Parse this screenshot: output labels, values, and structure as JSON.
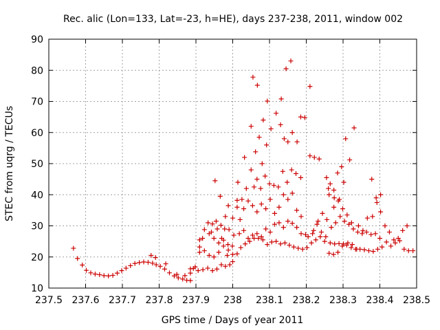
{
  "chart_data": {
    "type": "scatter",
    "title": "Rec. alic (Lon=133, Lat=-23, h=HE), days 237-238, 2011, window 002",
    "xlabel": "GPS time / Days of year 2011",
    "ylabel": "STEC from uqrg / TECUs",
    "xlim": [
      237.5,
      238.5
    ],
    "ylim": [
      10,
      90
    ],
    "x_ticks": [
      "237.5",
      "237.6",
      "237.7",
      "237.8",
      "237.9",
      "238",
      "238.1",
      "238.2",
      "238.3",
      "238.4",
      "238.5"
    ],
    "x_tick_values": [
      237.5,
      237.6,
      237.7,
      237.8,
      237.9,
      238.0,
      238.1,
      238.2,
      238.3,
      238.4,
      238.5
    ],
    "y_ticks": [
      "10",
      "20",
      "30",
      "40",
      "50",
      "60",
      "70",
      "80",
      "90"
    ],
    "y_tick_values": [
      10,
      20,
      30,
      40,
      50,
      60,
      70,
      80,
      90
    ],
    "grid": true,
    "marker": "plus",
    "color": "#cc0000",
    "points": [
      [
        237.567,
        22.8
      ],
      [
        237.578,
        19.5
      ],
      [
        237.591,
        17.4
      ],
      [
        237.602,
        15.7
      ],
      [
        237.614,
        14.9
      ],
      [
        237.626,
        14.5
      ],
      [
        237.638,
        14.3
      ],
      [
        237.65,
        14.0
      ],
      [
        237.662,
        13.9
      ],
      [
        237.674,
        14.1
      ],
      [
        237.686,
        14.8
      ],
      [
        237.698,
        15.6
      ],
      [
        237.71,
        16.4
      ],
      [
        237.722,
        17.2
      ],
      [
        237.734,
        17.9
      ],
      [
        237.746,
        18.2
      ],
      [
        237.758,
        18.4
      ],
      [
        237.77,
        18.3
      ],
      [
        237.782,
        18.0
      ],
      [
        237.792,
        17.5
      ],
      [
        237.803,
        17.0
      ],
      [
        237.815,
        16.1
      ],
      [
        237.828,
        14.9
      ],
      [
        237.841,
        13.9
      ],
      [
        237.852,
        13.3
      ],
      [
        237.864,
        12.9
      ],
      [
        237.875,
        12.5
      ],
      [
        237.885,
        12.4
      ],
      [
        237.778,
        20.5
      ],
      [
        237.79,
        19.8
      ],
      [
        237.818,
        17.8
      ],
      [
        237.848,
        14.4
      ],
      [
        237.87,
        14.0
      ],
      [
        237.885,
        14.8
      ],
      [
        237.893,
        16.3
      ],
      [
        237.906,
        15.6
      ],
      [
        237.919,
        15.9
      ],
      [
        237.932,
        16.4
      ],
      [
        237.945,
        15.6
      ],
      [
        237.957,
        16.1
      ],
      [
        237.969,
        17.5
      ],
      [
        237.98,
        17.0
      ],
      [
        237.992,
        17.5
      ],
      [
        237.885,
        16.2
      ],
      [
        237.898,
        16.8
      ],
      [
        237.91,
        23.2
      ],
      [
        237.923,
        22.0
      ],
      [
        237.936,
        20.5
      ],
      [
        237.949,
        20.0
      ],
      [
        237.962,
        21.5
      ],
      [
        237.975,
        23.5
      ],
      [
        237.988,
        22.2
      ],
      [
        238.0,
        20.8
      ],
      [
        238.012,
        21.0
      ],
      [
        237.91,
        25.5
      ],
      [
        237.923,
        28.8
      ],
      [
        237.936,
        27.5
      ],
      [
        237.949,
        26.0
      ],
      [
        237.962,
        24.5
      ],
      [
        237.975,
        25.4
      ],
      [
        237.987,
        24.0
      ],
      [
        237.999,
        23.5
      ],
      [
        237.91,
        21.5
      ],
      [
        237.918,
        26.0
      ],
      [
        237.933,
        31.0
      ],
      [
        237.945,
        30.6
      ],
      [
        237.958,
        29.0
      ],
      [
        237.968,
        30.2
      ],
      [
        237.978,
        29.0
      ],
      [
        237.99,
        28.8
      ],
      [
        238.003,
        27.0
      ],
      [
        237.942,
        28.0
      ],
      [
        237.952,
        44.5
      ],
      [
        237.966,
        39.5
      ],
      [
        237.98,
        33.0
      ],
      [
        237.988,
        36.5
      ],
      [
        238.0,
        32.5
      ],
      [
        238.012,
        36.0
      ],
      [
        237.955,
        31.5
      ],
      [
        237.97,
        26.0
      ],
      [
        237.985,
        20.5
      ],
      [
        238.0,
        18.5
      ],
      [
        238.012,
        38.2
      ],
      [
        238.025,
        38.5
      ],
      [
        238.037,
        42.0
      ],
      [
        238.05,
        48.0
      ],
      [
        238.062,
        53.8
      ],
      [
        238.072,
        58.5
      ],
      [
        238.083,
        64.0
      ],
      [
        238.094,
        70.1
      ],
      [
        238.014,
        44.0
      ],
      [
        238.032,
        52.0
      ],
      [
        238.05,
        62.0
      ],
      [
        238.055,
        77.8
      ],
      [
        238.067,
        75.2
      ],
      [
        238.08,
        50.0
      ],
      [
        238.092,
        56.0
      ],
      [
        238.104,
        61.2
      ],
      [
        238.118,
        66.2
      ],
      [
        238.132,
        70.8
      ],
      [
        238.145,
        80.5
      ],
      [
        238.158,
        83.0
      ],
      [
        238.13,
        62.5
      ],
      [
        238.14,
        58.0
      ],
      [
        238.15,
        57.0
      ],
      [
        238.162,
        60.0
      ],
      [
        238.175,
        57.0
      ],
      [
        238.185,
        65.0
      ],
      [
        238.196,
        64.8
      ],
      [
        238.21,
        74.8
      ],
      [
        238.21,
        52.5
      ],
      [
        238.222,
        52.0
      ],
      [
        238.235,
        51.5
      ],
      [
        238.058,
        42.5
      ],
      [
        238.066,
        45.0
      ],
      [
        238.076,
        42.0
      ],
      [
        238.088,
        46.0
      ],
      [
        238.1,
        43.5
      ],
      [
        238.112,
        43.0
      ],
      [
        238.124,
        42.5
      ],
      [
        238.136,
        47.5
      ],
      [
        238.148,
        44.0
      ],
      [
        238.16,
        48.0
      ],
      [
        238.172,
        46.8
      ],
      [
        238.185,
        45.5
      ],
      [
        238.02,
        32.0
      ],
      [
        238.03,
        35.5
      ],
      [
        238.042,
        38.0
      ],
      [
        238.054,
        36.5
      ],
      [
        238.066,
        34.5
      ],
      [
        238.078,
        37.0
      ],
      [
        238.09,
        35.5
      ],
      [
        238.102,
        38.5
      ],
      [
        238.114,
        34.0
      ],
      [
        238.126,
        36.0
      ],
      [
        238.138,
        40.0
      ],
      [
        238.15,
        38.5
      ],
      [
        238.162,
        40.5
      ],
      [
        238.174,
        35.0
      ],
      [
        238.186,
        33.0
      ],
      [
        238.018,
        27.5
      ],
      [
        238.03,
        28.5
      ],
      [
        238.042,
        26.0
      ],
      [
        238.054,
        27.0
      ],
      [
        238.066,
        27.5
      ],
      [
        238.078,
        26.5
      ],
      [
        238.09,
        29.0
      ],
      [
        238.102,
        28.0
      ],
      [
        238.114,
        30.5
      ],
      [
        238.126,
        31.0
      ],
      [
        238.138,
        29.5
      ],
      [
        238.15,
        31.5
      ],
      [
        238.162,
        30.8
      ],
      [
        238.174,
        29.5
      ],
      [
        238.186,
        27.5
      ],
      [
        238.198,
        27.2
      ],
      [
        238.022,
        23.0
      ],
      [
        238.034,
        24.2
      ],
      [
        238.046,
        25.0
      ],
      [
        238.058,
        26.0
      ],
      [
        238.07,
        26.0
      ],
      [
        238.082,
        25.5
      ],
      [
        238.094,
        24.0
      ],
      [
        238.106,
        24.8
      ],
      [
        238.118,
        25.0
      ],
      [
        238.13,
        24.2
      ],
      [
        238.142,
        24.5
      ],
      [
        238.154,
        23.8
      ],
      [
        238.166,
        23.2
      ],
      [
        238.178,
        22.8
      ],
      [
        238.19,
        22.5
      ],
      [
        238.202,
        23.0
      ],
      [
        238.214,
        24.5
      ],
      [
        238.226,
        25.5
      ],
      [
        238.238,
        26.5
      ],
      [
        238.25,
        25.0
      ],
      [
        238.262,
        21.2
      ],
      [
        238.274,
        20.8
      ],
      [
        238.286,
        21.5
      ],
      [
        238.298,
        23.5
      ],
      [
        238.31,
        23.8
      ],
      [
        238.322,
        23.0
      ],
      [
        238.334,
        22.5
      ],
      [
        238.346,
        22.5
      ],
      [
        238.358,
        22.3
      ],
      [
        238.37,
        22.0
      ],
      [
        238.382,
        21.8
      ],
      [
        238.394,
        22.5
      ],
      [
        238.406,
        23.2
      ],
      [
        238.418,
        24.8
      ],
      [
        238.43,
        23.5
      ],
      [
        238.442,
        24.5
      ],
      [
        238.454,
        25.2
      ],
      [
        238.466,
        22.5
      ],
      [
        238.478,
        22.0
      ],
      [
        238.49,
        22.0
      ],
      [
        238.205,
        26.5
      ],
      [
        238.217,
        27.5
      ],
      [
        238.229,
        30.5
      ],
      [
        238.241,
        28.0
      ],
      [
        238.253,
        26.5
      ],
      [
        238.265,
        24.5
      ],
      [
        238.277,
        24.2
      ],
      [
        238.289,
        24.3
      ],
      [
        238.301,
        24.2
      ],
      [
        238.313,
        24.5
      ],
      [
        238.325,
        24.0
      ],
      [
        238.337,
        22.5
      ],
      [
        238.22,
        28.5
      ],
      [
        238.232,
        31.5
      ],
      [
        238.244,
        34.0
      ],
      [
        238.256,
        32.0
      ],
      [
        238.268,
        29.5
      ],
      [
        238.28,
        31.0
      ],
      [
        238.292,
        33.0
      ],
      [
        238.304,
        31.5
      ],
      [
        238.316,
        30.5
      ],
      [
        238.328,
        29.0
      ],
      [
        238.34,
        28.0
      ],
      [
        238.352,
        27.5
      ],
      [
        238.364,
        28.0
      ],
      [
        238.376,
        27.2
      ],
      [
        238.388,
        27.5
      ],
      [
        238.4,
        26.0
      ],
      [
        238.255,
        45.5
      ],
      [
        238.265,
        43.5
      ],
      [
        238.275,
        41.5
      ],
      [
        238.287,
        38.0
      ],
      [
        238.299,
        35.5
      ],
      [
        238.311,
        33.5
      ],
      [
        238.323,
        31.0
      ],
      [
        238.285,
        47.0
      ],
      [
        238.296,
        49.0
      ],
      [
        238.307,
        58.0
      ],
      [
        238.318,
        51.2
      ],
      [
        238.33,
        61.5
      ],
      [
        238.342,
        30.0
      ],
      [
        238.354,
        28.5
      ],
      [
        238.366,
        32.5
      ],
      [
        238.378,
        45.0
      ],
      [
        238.39,
        39.0
      ],
      [
        238.402,
        40.0
      ],
      [
        238.392,
        37.5
      ],
      [
        238.402,
        34.5
      ],
      [
        238.414,
        30.0
      ],
      [
        238.426,
        28.0
      ],
      [
        238.438,
        25.5
      ],
      [
        238.45,
        26.0
      ],
      [
        238.462,
        28.5
      ],
      [
        238.474,
        30.0
      ],
      [
        238.26,
        42.0
      ],
      [
        238.275,
        36.0
      ],
      [
        238.29,
        38.5
      ],
      [
        238.302,
        44.0
      ],
      [
        238.262,
        40.0
      ],
      [
        238.276,
        39.0
      ],
      [
        238.38,
        33.0
      ]
    ]
  }
}
